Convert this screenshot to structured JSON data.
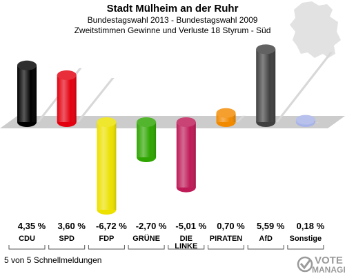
{
  "chart_data": {
    "type": "bar",
    "title": "Stadt Mülheim an der Ruhr",
    "subtitle1": "Bundestagswahl 2013 - Bundestagswahl 2009",
    "subtitle2": "Zweitstimmen Gewinne und Verluste 18 Styrum - Süd",
    "categories": [
      "CDU",
      "SPD",
      "FDP",
      "GRÜNE",
      "DIE LINKE",
      "PIRATEN",
      "AfD",
      "Sonstige"
    ],
    "category_lines": [
      [
        "CDU"
      ],
      [
        "SPD"
      ],
      [
        "FDP"
      ],
      [
        "GRÜNE"
      ],
      [
        "DIE",
        "LINKE"
      ],
      [
        "PIRATEN"
      ],
      [
        "AfD"
      ],
      [
        "Sonstige"
      ]
    ],
    "values": [
      4.35,
      3.6,
      -6.72,
      -2.7,
      -5.01,
      0.7,
      5.59,
      0.18
    ],
    "value_labels": [
      "4,35 %",
      "3,60 %",
      "-6,72 %",
      "-2,70 %",
      "-5,01 %",
      "0,70 %",
      "5,59 %",
      "0,18 %"
    ],
    "colors": [
      "#000000",
      "#e3000f",
      "#ece100",
      "#2ea500",
      "#be1a57",
      "#f28a00",
      "#404040",
      "#a8b4e8"
    ],
    "ylim": [
      -7.0,
      6.0
    ]
  },
  "footer": "5 von 5 Schnellmeldungen",
  "brand": {
    "line1": "VOTE",
    "line2": "MANAGER"
  }
}
